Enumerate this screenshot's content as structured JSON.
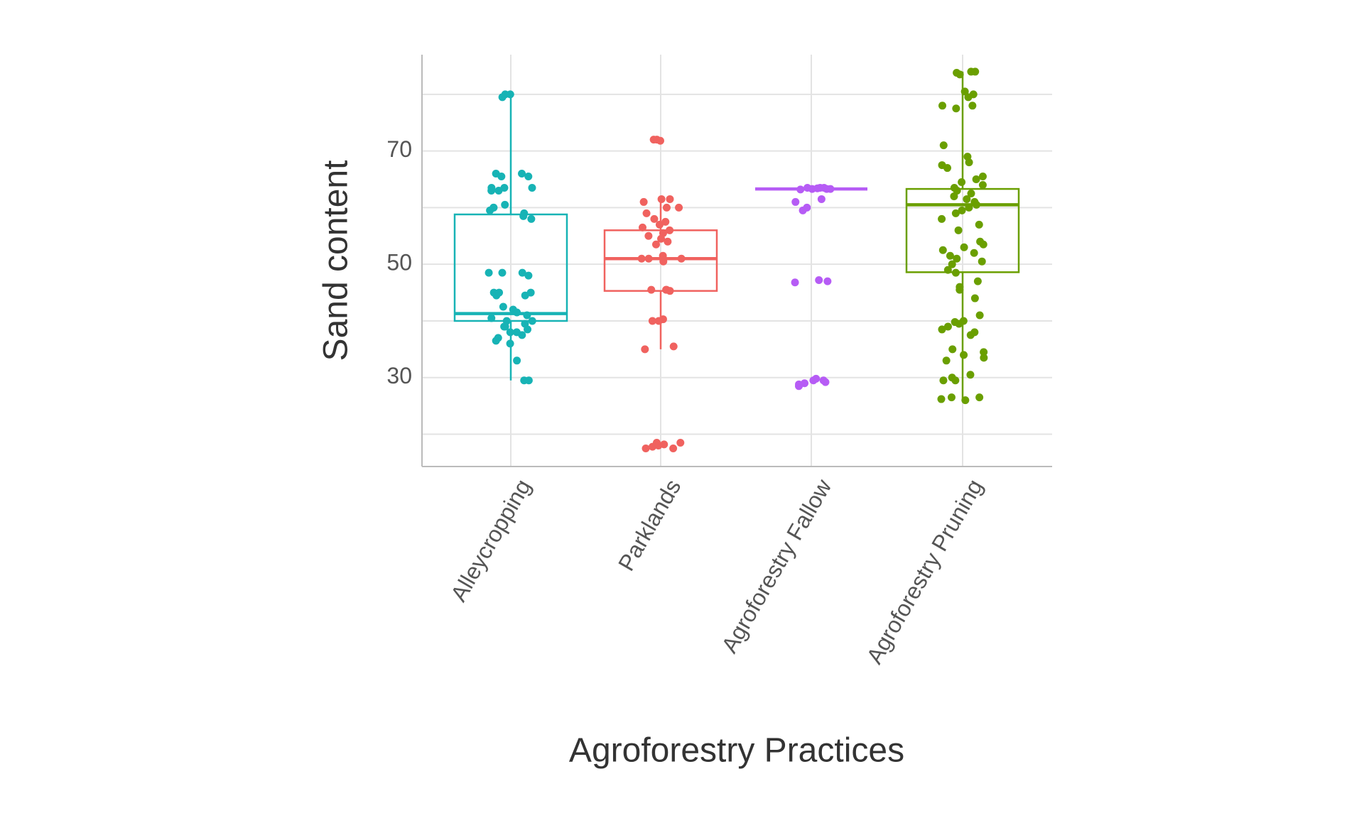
{
  "chart_data": {
    "type": "box",
    "x_label": "Agroforestry Practices",
    "y_label": "Sand content",
    "categories": [
      "Alleycropping",
      "Parklands",
      "Agroforestry Fallow",
      "Agroforestry Pruning"
    ],
    "ylim": [
      14.3,
      87
    ],
    "yticks": [
      30,
      50,
      70
    ],
    "minor_yticks": [
      20,
      40,
      60,
      80
    ],
    "grid": true,
    "groups": [
      {
        "color": "#17b3b5",
        "whisker_low": 29.5,
        "q1": 40,
        "median": 41.3,
        "q3": 58.8,
        "whisker_high": 80,
        "points": [
          80,
          80,
          79.5,
          66,
          66,
          65.5,
          65.5,
          63.5,
          63.5,
          63,
          63,
          63.5,
          60,
          60,
          59.5,
          59,
          58.5,
          58,
          60.5,
          48.5,
          48.5,
          48,
          48.5,
          45,
          45,
          44.5,
          45,
          44.5,
          42,
          41.5,
          41,
          40.5,
          40,
          39.5,
          39,
          38.5,
          38,
          37.5,
          37,
          36.5,
          36,
          33,
          29.5,
          29.5,
          42.5,
          40,
          39,
          38
        ]
      },
      {
        "color": "#f0625f",
        "whisker_low": 35,
        "q1": 45.3,
        "median": 51,
        "q3": 56,
        "whisker_high": 61.5,
        "points": [
          72,
          72,
          71.8,
          61.5,
          61.5,
          61,
          60,
          60,
          59,
          58,
          57.5,
          57,
          56.5,
          56,
          55.5,
          55,
          54.5,
          54,
          53.5,
          51.5,
          51,
          51,
          51,
          50.5,
          45.5,
          45.5,
          45.3,
          45.5,
          40.3,
          40,
          40,
          35.5,
          35,
          18.5,
          18.5,
          18,
          17.8,
          17.5,
          17.5,
          18.2
        ]
      },
      {
        "color": "#b65cf5",
        "whisker_low": 63.3,
        "q1": 63.3,
        "median": 63.3,
        "q3": 63.3,
        "whisker_high": 63.3,
        "points": [
          63.5,
          63.5,
          63.3,
          63.3,
          63.2,
          63.4,
          63.5,
          63.3,
          61.5,
          61,
          60,
          59.5,
          47,
          47.2,
          46.8,
          29.5,
          29.5,
          29.2,
          29,
          28.8,
          28.5,
          29.8
        ]
      },
      {
        "color": "#6a9f00",
        "whisker_low": 26,
        "q1": 48.6,
        "median": 60.5,
        "q3": 63.3,
        "whisker_high": 84,
        "points": [
          84,
          84,
          83.8,
          83.5,
          80.5,
          80,
          79.5,
          78,
          78,
          77.5,
          71,
          69,
          68,
          67.5,
          67,
          65.5,
          65,
          64.5,
          64,
          63.5,
          63,
          62.5,
          62,
          61.5,
          61,
          60.5,
          60,
          59.5,
          59,
          58,
          57,
          56,
          54,
          53.5,
          53,
          52.5,
          52,
          51.5,
          51,
          50.5,
          50,
          49,
          48.5,
          47,
          46,
          45.5,
          44,
          41,
          40,
          39.8,
          39.5,
          39,
          38.5,
          38,
          37.5,
          35,
          34.5,
          34,
          33.5,
          33,
          30.5,
          30,
          29.5,
          29.5,
          26.5,
          26,
          26.2,
          26.5
        ]
      }
    ]
  }
}
